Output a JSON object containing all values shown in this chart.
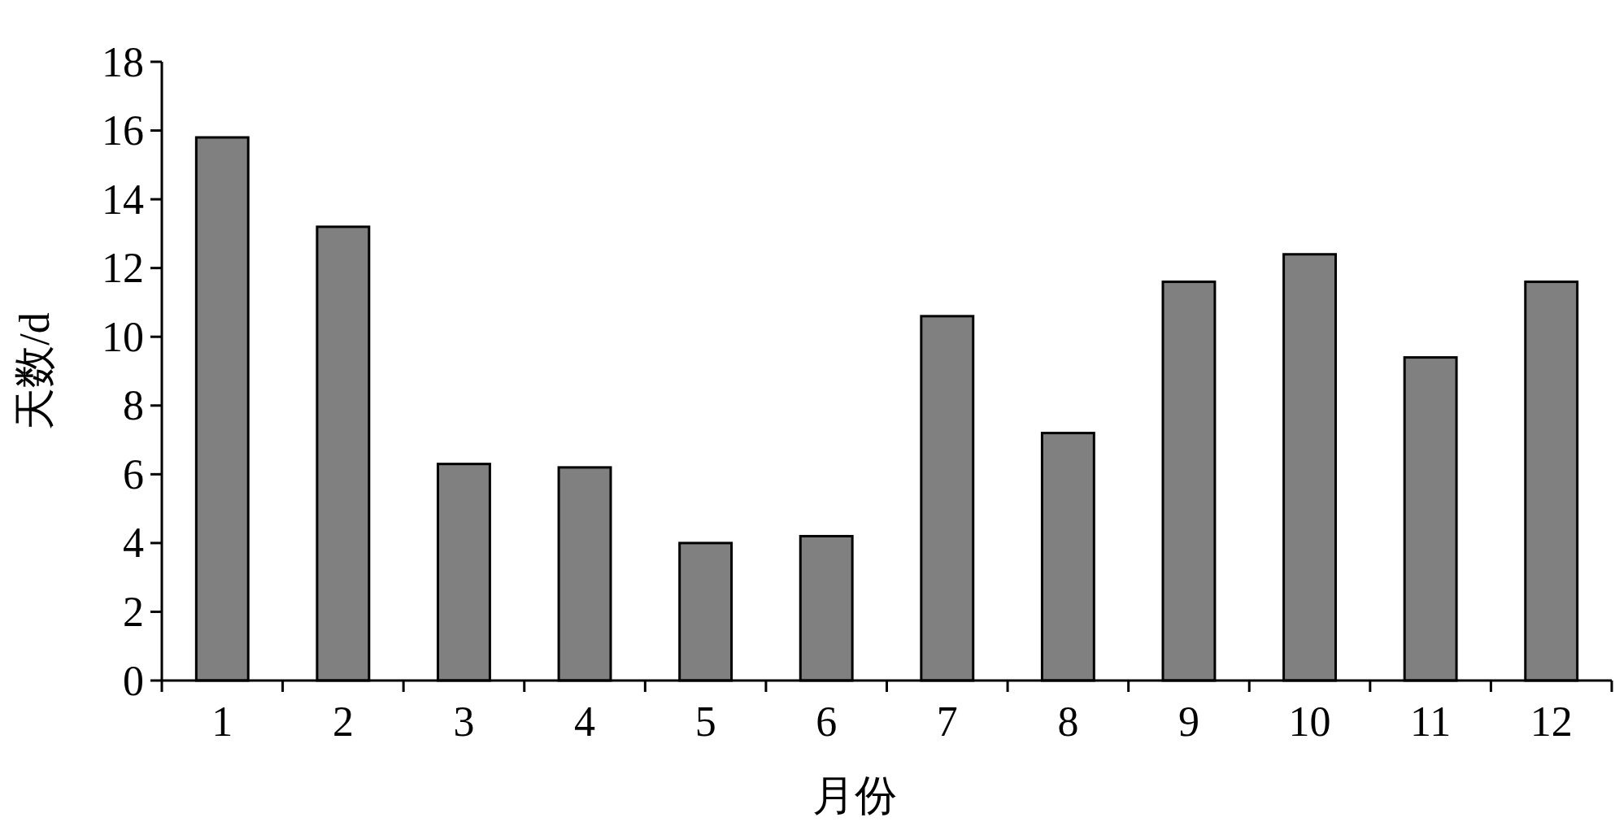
{
  "chart_data": {
    "type": "bar",
    "xlabel": "月份",
    "ylabel": "天数/d",
    "categories": [
      "1",
      "2",
      "3",
      "4",
      "5",
      "6",
      "7",
      "8",
      "9",
      "10",
      "11",
      "12"
    ],
    "values": [
      15.8,
      13.2,
      6.3,
      6.2,
      4.0,
      4.2,
      10.6,
      7.2,
      11.6,
      12.4,
      9.4,
      11.6
    ],
    "color": "#808080",
    "ylim": [
      0,
      18
    ],
    "yticks": [
      0,
      2,
      4,
      6,
      8,
      10,
      12,
      14,
      16,
      18
    ]
  }
}
